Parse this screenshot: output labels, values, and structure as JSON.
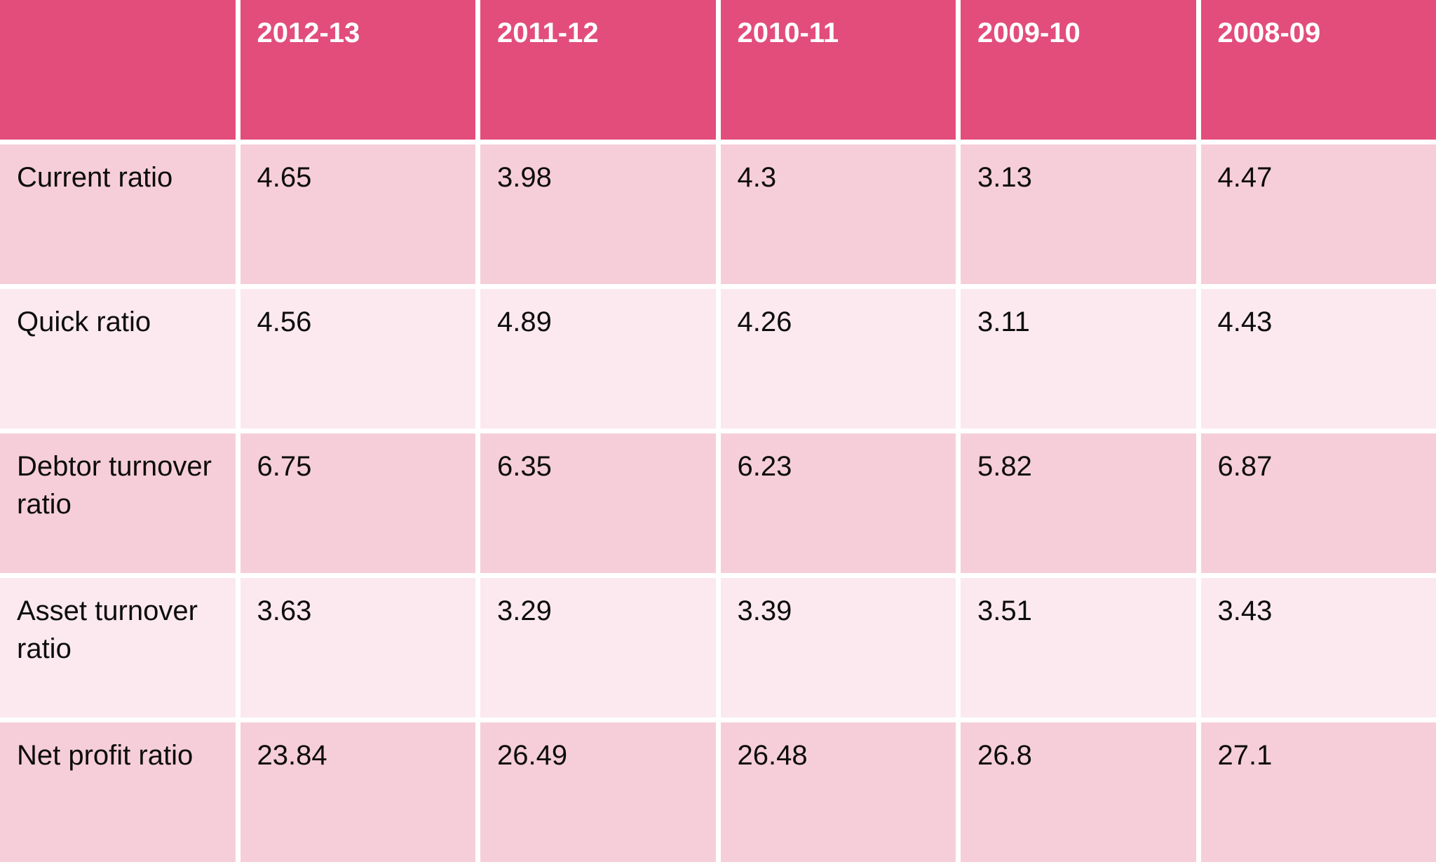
{
  "table": {
    "header": [
      "",
      "2012-13",
      "2011-12",
      "2010-11",
      "2009-10",
      "2008-09"
    ],
    "rows": [
      {
        "label": "Current ratio",
        "values": [
          "4.65",
          "3.98",
          "4.3",
          "3.13",
          "4.47"
        ]
      },
      {
        "label": "Quick ratio",
        "values": [
          "4.56",
          "4.89",
          "4.26",
          "3.11",
          "4.43"
        ]
      },
      {
        "label": "Debtor turnover ratio",
        "values": [
          "6.75",
          "6.35",
          "6.23",
          "5.82",
          "6.87"
        ]
      },
      {
        "label": "Asset turnover ratio",
        "values": [
          "3.63",
          "3.29",
          "3.39",
          "3.51",
          "3.43"
        ]
      },
      {
        "label": "Net profit ratio",
        "values": [
          "23.84",
          "26.49",
          "26.48",
          "26.8",
          "27.1"
        ]
      }
    ]
  },
  "colors": {
    "header-bg": "#e24d7b",
    "band-dark": "#f6ceda",
    "band-light": "#fbe9ef",
    "separator": "#ffffff",
    "header-text": "#ffffff",
    "body-text": "#0d0d0d"
  },
  "chart_data": {
    "type": "table",
    "categories": [
      "2012-13",
      "2011-12",
      "2010-11",
      "2009-10",
      "2008-09"
    ],
    "series": [
      {
        "name": "Current ratio",
        "values": [
          4.65,
          3.98,
          4.3,
          3.13,
          4.47
        ]
      },
      {
        "name": "Quick ratio",
        "values": [
          4.56,
          4.89,
          4.26,
          3.11,
          4.43
        ]
      },
      {
        "name": "Debtor turnover ratio",
        "values": [
          6.75,
          6.35,
          6.23,
          5.82,
          6.87
        ]
      },
      {
        "name": "Asset turnover ratio",
        "values": [
          3.63,
          3.29,
          3.39,
          3.51,
          3.43
        ]
      },
      {
        "name": "Net profit ratio",
        "values": [
          23.84,
          26.49,
          26.48,
          26.8,
          27.1
        ]
      }
    ]
  }
}
